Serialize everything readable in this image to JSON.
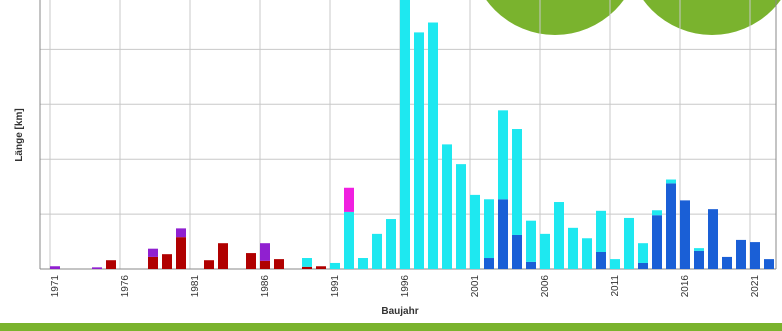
{
  "chart_data": {
    "type": "stacked_bar",
    "y_label": "Länge [km]",
    "x_label": "Baujahr",
    "categories": [
      "1971",
      null,
      null,
      null,
      null,
      "1976",
      null,
      null,
      null,
      null,
      "1981",
      null,
      null,
      null,
      null,
      "1986",
      null,
      null,
      null,
      null,
      "1991",
      null,
      null,
      null,
      null,
      "1996",
      null,
      null,
      null,
      null,
      "2001",
      null,
      null,
      null,
      null,
      "2006",
      null,
      null,
      null,
      null,
      "2011",
      null,
      null,
      null,
      null,
      "2016",
      null,
      null,
      null,
      null,
      "2021",
      null
    ],
    "series": [
      {
        "color": "#b00000",
        "values": [
          0,
          0,
          0,
          0,
          0.16,
          0,
          0,
          0.22,
          0.27,
          0.58,
          0,
          0.16,
          0.47,
          0,
          0.29,
          0.15,
          0.18,
          0,
          0.04,
          0.05,
          0,
          0,
          0,
          0,
          0,
          0,
          0,
          0,
          0,
          0,
          0,
          0,
          0,
          0,
          0,
          0,
          0,
          0,
          0,
          0,
          0,
          0,
          0,
          0,
          0,
          0,
          0,
          0,
          0,
          0,
          0,
          0
        ]
      },
      {
        "color": "#1a5fd6",
        "values": [
          0,
          0,
          0,
          0,
          0,
          0,
          0,
          0,
          0,
          0,
          0,
          0,
          0,
          0,
          0,
          0,
          0,
          0,
          0,
          0,
          0,
          0,
          0,
          0,
          0,
          0,
          0,
          0,
          0,
          0,
          0,
          0.2,
          1.27,
          0.62,
          0.13,
          0,
          0,
          0,
          0,
          0.31,
          0,
          0,
          0.11,
          0.98,
          1.56,
          1.25,
          0.33,
          1.09,
          0.22,
          0.53,
          0.49,
          0.18
        ]
      },
      {
        "color": "#1ee8f0",
        "values": [
          0,
          0,
          0,
          0,
          0,
          0,
          0,
          0,
          0,
          0,
          0,
          0,
          0,
          0,
          0,
          0,
          0,
          0,
          0.16,
          0,
          0.11,
          1.04,
          0.2,
          0.64,
          0.91,
          4.9,
          4.31,
          4.49,
          2.27,
          1.91,
          1.35,
          1.07,
          1.62,
          1.93,
          0.75,
          0.64,
          1.22,
          0.75,
          0.56,
          0.75,
          0.18,
          0.93,
          0.36,
          0.09,
          0.07,
          0,
          0.05,
          0,
          0,
          0,
          0,
          0
        ]
      },
      {
        "color": "#9020d0",
        "values": [
          0.05,
          0,
          0,
          0.03,
          0,
          0,
          0,
          0.15,
          0,
          0.16,
          0,
          0,
          0,
          0,
          0,
          0.32,
          0,
          0,
          0,
          0,
          0,
          0,
          0,
          0,
          0,
          0,
          0,
          0,
          0,
          0,
          0,
          0,
          0,
          0,
          0,
          0,
          0,
          0,
          0,
          0,
          0,
          0,
          0,
          0,
          0,
          0,
          0,
          0,
          0,
          0,
          0,
          0
        ]
      },
      {
        "color": "#f020e0",
        "values": [
          0,
          0,
          0,
          0,
          0,
          0,
          0,
          0,
          0,
          0,
          0,
          0,
          0,
          0,
          0,
          0,
          0,
          0,
          0,
          0,
          0,
          0.44,
          0,
          0,
          0,
          0,
          0,
          0,
          0,
          0,
          0,
          0,
          0,
          0,
          0,
          0,
          0,
          0,
          0,
          0,
          0,
          0,
          0,
          0,
          0,
          0,
          0,
          0,
          0,
          0,
          0,
          0
        ]
      }
    ],
    "ylim": [
      0,
      4.9
    ],
    "yticks": [
      0,
      1,
      2,
      3,
      4
    ],
    "grid": true
  }
}
